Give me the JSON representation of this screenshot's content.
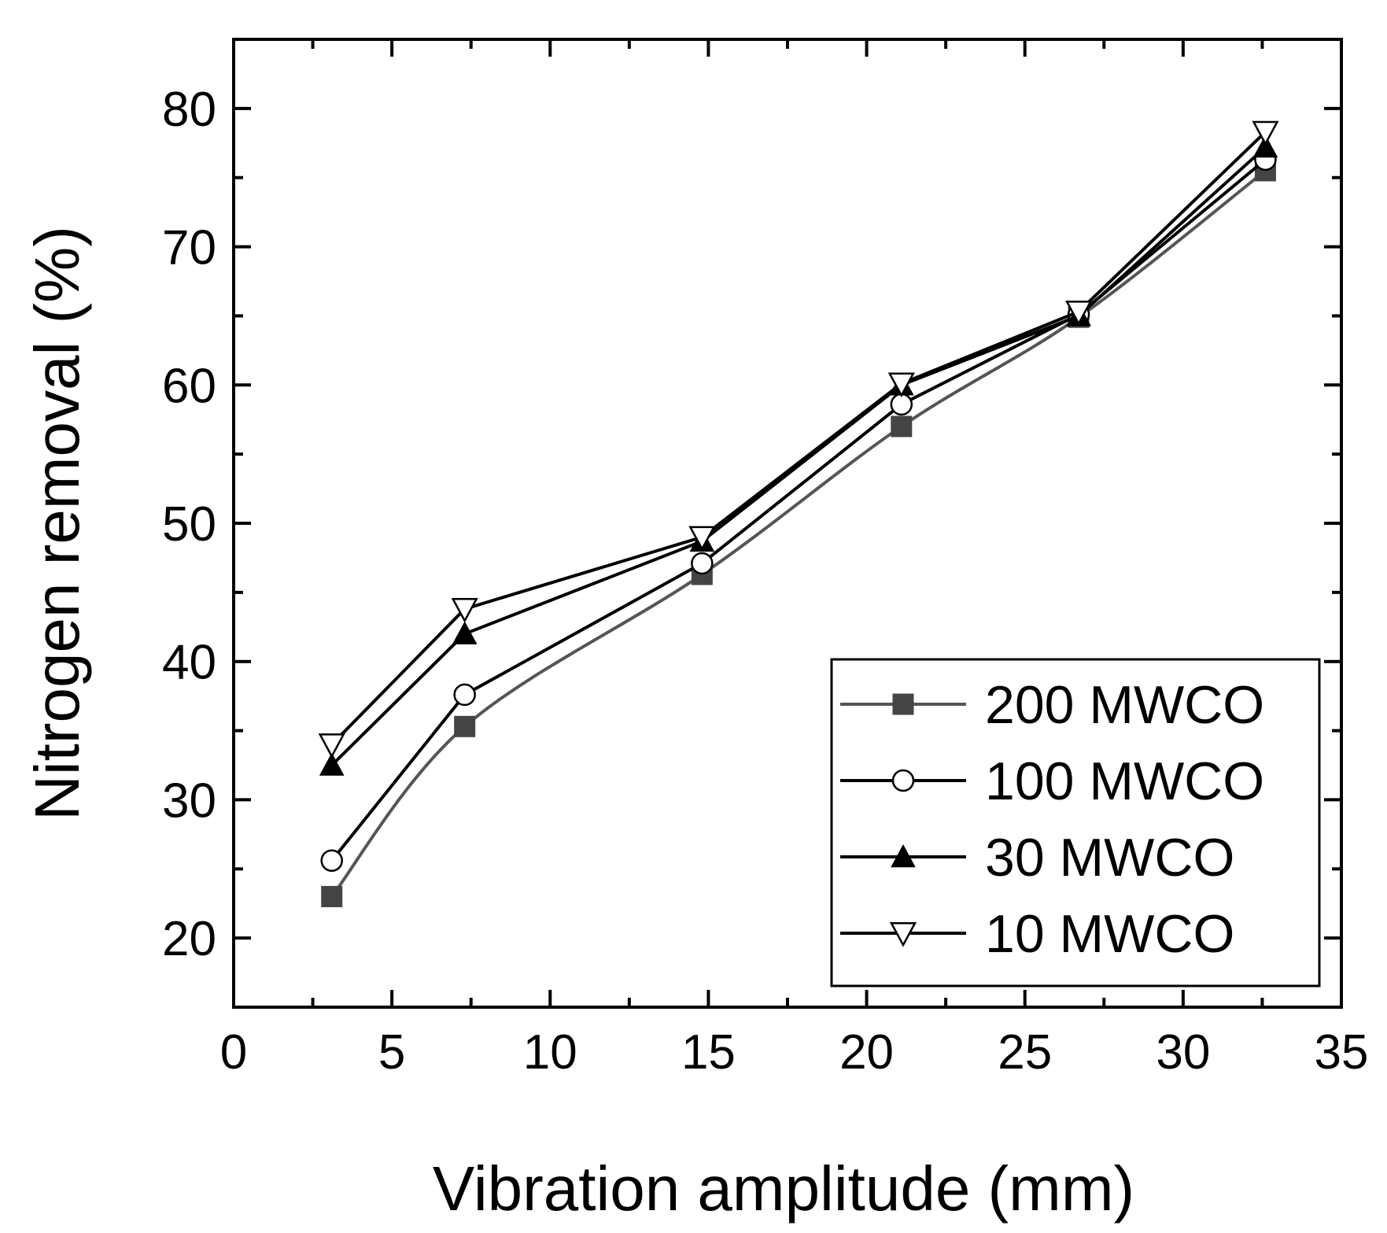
{
  "chart_data": {
    "type": "line",
    "title": "",
    "xlabel": "Vibration amplitude (mm)",
    "ylabel": "Nitrogen removal (%)",
    "xlim": [
      0,
      35
    ],
    "ylim": [
      15,
      85
    ],
    "xticks": [
      0,
      5,
      10,
      15,
      20,
      25,
      30,
      35
    ],
    "yticks": [
      20,
      30,
      40,
      50,
      60,
      70,
      80
    ],
    "legend_position": "bottom-right",
    "series": [
      {
        "name": "200 MWCO",
        "marker": "square-filled",
        "color": "#555555",
        "marker_color": "#444444",
        "smooth": true,
        "points": [
          [
            3.1,
            23.0
          ],
          [
            7.3,
            35.3
          ],
          [
            14.8,
            46.3
          ],
          [
            21.1,
            57.0
          ],
          [
            26.7,
            64.9
          ],
          [
            32.6,
            75.5
          ]
        ]
      },
      {
        "name": "100 MWCO",
        "marker": "circle-open",
        "color": "#000000",
        "marker_color": "#000000",
        "smooth": false,
        "points": [
          [
            3.1,
            25.6
          ],
          [
            7.3,
            37.6
          ],
          [
            14.8,
            47.1
          ],
          [
            21.1,
            58.6
          ],
          [
            26.7,
            65.1
          ],
          [
            32.6,
            76.3
          ]
        ]
      },
      {
        "name": "30 MWCO",
        "marker": "triangle-up-filled",
        "color": "#000000",
        "marker_color": "#000000",
        "smooth": false,
        "points": [
          [
            3.1,
            32.5
          ],
          [
            7.3,
            42.0
          ],
          [
            14.8,
            48.7
          ],
          [
            21.1,
            60.0
          ],
          [
            26.7,
            65.0
          ],
          [
            32.6,
            77.2
          ]
        ]
      },
      {
        "name": "10 MWCO",
        "marker": "triangle-down-open",
        "color": "#000000",
        "marker_color": "#000000",
        "smooth": false,
        "points": [
          [
            3.1,
            34.0
          ],
          [
            7.3,
            43.8
          ],
          [
            14.8,
            49.0
          ],
          [
            21.1,
            60.1
          ],
          [
            26.7,
            65.3
          ],
          [
            32.6,
            78.3
          ]
        ]
      }
    ]
  }
}
